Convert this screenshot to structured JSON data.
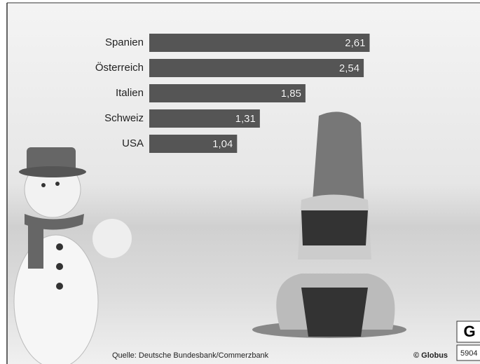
{
  "chart_data": {
    "type": "bar",
    "orientation": "horizontal",
    "categories": [
      "Spanien",
      "Österreich",
      "Italien",
      "Schweiz",
      "USA"
    ],
    "values": [
      2.61,
      2.54,
      1.85,
      1.31,
      1.04
    ],
    "value_labels": [
      "2,61",
      "2,54",
      "1,85",
      "1,31",
      "1,04"
    ],
    "color": "#555555",
    "source": "Quelle: Deutsche Bundesbank/Commerzbank",
    "copyright": "© Globus",
    "logo": "G",
    "graphic_number": "5904"
  }
}
